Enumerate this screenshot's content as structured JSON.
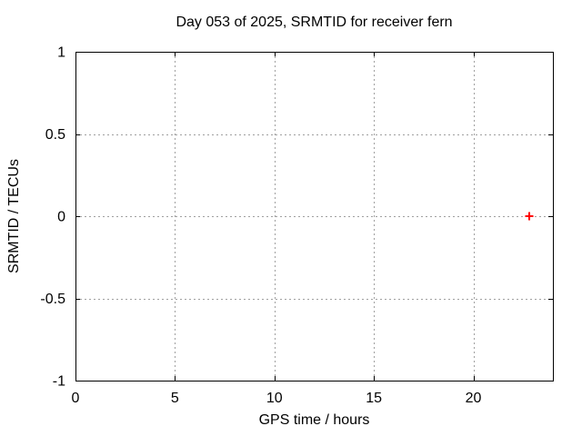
{
  "chart_data": {
    "type": "scatter",
    "title": "Day 053 of 2025, SRMTID for receiver fern",
    "xlabel": "GPS time / hours",
    "ylabel": "SRMTID / TECUs",
    "xlim": [
      0,
      24
    ],
    "ylim": [
      -1,
      1
    ],
    "xticks": {
      "values": [
        0,
        5,
        10,
        15,
        20
      ],
      "labels": [
        "0",
        "5",
        "10",
        "15",
        "20"
      ]
    },
    "yticks": {
      "values": [
        -1,
        -0.5,
        0,
        0.5,
        1
      ],
      "labels": [
        "-1",
        "-0.5",
        "0",
        "0.5",
        "1"
      ]
    },
    "grid": true,
    "legend": "none",
    "series": [
      {
        "name": "SRMTID",
        "marker": "plus",
        "color": "#ff0000",
        "points": [
          {
            "x": 22.8,
            "y": 0.0
          }
        ]
      }
    ],
    "colors": {
      "background": "#ffffff",
      "text": "#000000",
      "border": "#000000",
      "grid": "#a0a0a0",
      "marker": "#ff0000"
    }
  }
}
